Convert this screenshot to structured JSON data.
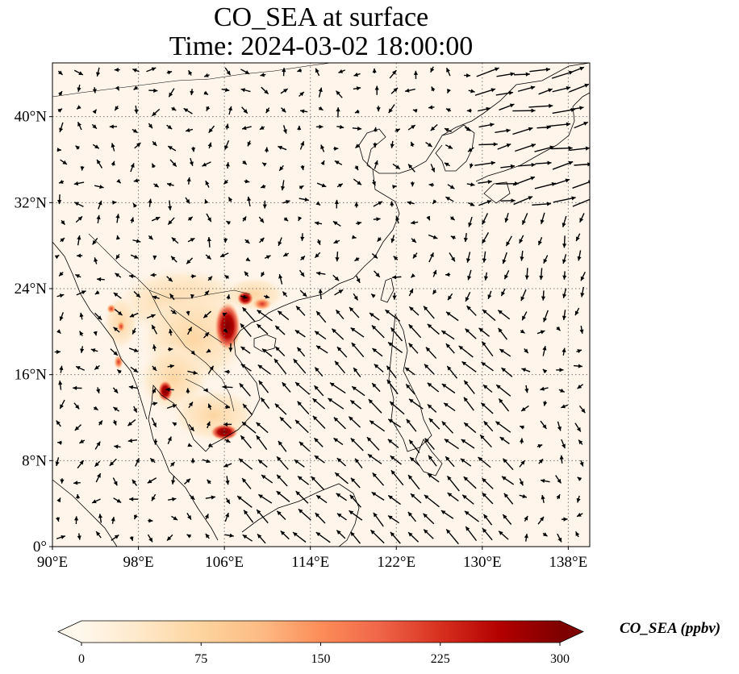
{
  "title": {
    "line1": "CO_SEA at surface",
    "line2": "Time: 2024-03-02 18:00:00"
  },
  "map": {
    "lon_range": [
      90,
      140
    ],
    "lat_range": [
      0,
      45
    ],
    "lon_ticks": [
      "90°E",
      "98°E",
      "106°E",
      "114°E",
      "122°E",
      "130°E",
      "138°E"
    ],
    "lat_ticks": [
      "0°",
      "8°N",
      "16°N",
      "24°N",
      "32°N",
      "40°N"
    ],
    "gridlines": "dotted",
    "background_color": "#fff5eb",
    "hotspots": [
      {
        "region": "Northern Vietnam / Red River Delta",
        "lon": 105.8,
        "lat": 21.0,
        "level": "high"
      },
      {
        "region": "Guangxi",
        "lon": 108.3,
        "lat": 22.5,
        "level": "high"
      },
      {
        "region": "Bangkok",
        "lon": 100.6,
        "lat": 14.2,
        "level": "high"
      },
      {
        "region": "Ho Chi Minh City",
        "lon": 106.6,
        "lat": 10.8,
        "level": "high"
      },
      {
        "region": "Myanmar coast",
        "lon": 96.2,
        "lat": 16.8,
        "level": "medium"
      },
      {
        "region": "Hainan / Guangdong coast",
        "lon": 109.5,
        "lat": 22.0,
        "level": "medium"
      }
    ],
    "wind_vectors": "quiver arrows"
  },
  "colorbar": {
    "label": "CO_SEA (ppbv)",
    "min": 0,
    "max": 300,
    "ticks": [
      "0",
      "75",
      "150",
      "225",
      "300"
    ],
    "extend": "both",
    "colormap": "OrRd",
    "colors": [
      "#fff7ec",
      "#fee8c8",
      "#fdd49e",
      "#fdbb84",
      "#fc8d59",
      "#ef6548",
      "#d7301f",
      "#b30000",
      "#7f0000"
    ]
  }
}
